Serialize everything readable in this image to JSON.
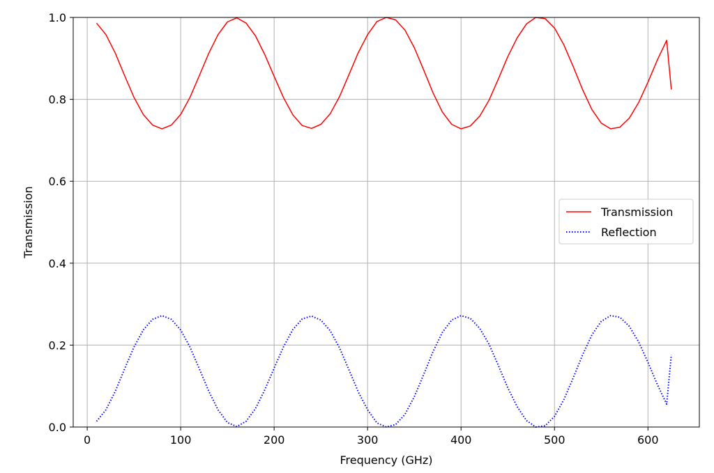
{
  "chart_data": {
    "type": "line",
    "title": "",
    "xlabel": "Frequency (GHz)",
    "ylabel": "Transmission",
    "xlim": [
      -15,
      655
    ],
    "ylim": [
      0.0,
      1.0
    ],
    "x_ticks": [
      0,
      100,
      200,
      300,
      400,
      500,
      600
    ],
    "x_tick_labels": [
      "0",
      "100",
      "200",
      "300",
      "400",
      "500",
      "600"
    ],
    "y_ticks": [
      0.0,
      0.2,
      0.4,
      0.6,
      0.8,
      1.0
    ],
    "y_tick_labels": [
      "0.0",
      "0.2",
      "0.4",
      "0.6",
      "0.8",
      "1.0"
    ],
    "grid": true,
    "legend_position": "center-right",
    "x": [
      10,
      20,
      30,
      40,
      50,
      60,
      70,
      80,
      90,
      100,
      110,
      120,
      130,
      140,
      150,
      160,
      170,
      180,
      190,
      200,
      210,
      220,
      230,
      240,
      250,
      260,
      270,
      280,
      290,
      300,
      310,
      320,
      330,
      340,
      350,
      360,
      370,
      380,
      390,
      400,
      410,
      420,
      430,
      440,
      450,
      460,
      470,
      480,
      490,
      500,
      510,
      520,
      530,
      540,
      550,
      560,
      570,
      580,
      590,
      600,
      610,
      620,
      625
    ],
    "series": [
      {
        "name": "Transmission",
        "color": "#ff0000",
        "style": "solid",
        "values": [
          0.986,
          0.958,
          0.913,
          0.858,
          0.805,
          0.763,
          0.737,
          0.728,
          0.737,
          0.763,
          0.805,
          0.858,
          0.912,
          0.958,
          0.989,
          0.999,
          0.986,
          0.955,
          0.909,
          0.856,
          0.804,
          0.762,
          0.736,
          0.729,
          0.739,
          0.765,
          0.807,
          0.86,
          0.914,
          0.958,
          0.99,
          1.0,
          0.994,
          0.969,
          0.926,
          0.872,
          0.816,
          0.769,
          0.739,
          0.728,
          0.735,
          0.759,
          0.798,
          0.85,
          0.904,
          0.95,
          0.984,
          1.0,
          0.997,
          0.974,
          0.933,
          0.88,
          0.824,
          0.775,
          0.742,
          0.728,
          0.732,
          0.754,
          0.792,
          0.842,
          0.896,
          0.944,
          0.824
        ]
      },
      {
        "name": "Reflection",
        "color": "#0000ff",
        "style": "dotted",
        "values": [
          0.014,
          0.042,
          0.087,
          0.142,
          0.195,
          0.237,
          0.263,
          0.272,
          0.263,
          0.237,
          0.195,
          0.142,
          0.088,
          0.042,
          0.011,
          0.001,
          0.014,
          0.045,
          0.091,
          0.144,
          0.196,
          0.238,
          0.264,
          0.271,
          0.261,
          0.235,
          0.193,
          0.14,
          0.086,
          0.042,
          0.01,
          0.0,
          0.006,
          0.031,
          0.074,
          0.128,
          0.184,
          0.231,
          0.261,
          0.272,
          0.265,
          0.241,
          0.202,
          0.15,
          0.096,
          0.05,
          0.016,
          0.0,
          0.003,
          0.026,
          0.067,
          0.12,
          0.176,
          0.225,
          0.258,
          0.272,
          0.268,
          0.246,
          0.208,
          0.158,
          0.104,
          0.056,
          0.176
        ]
      }
    ]
  }
}
